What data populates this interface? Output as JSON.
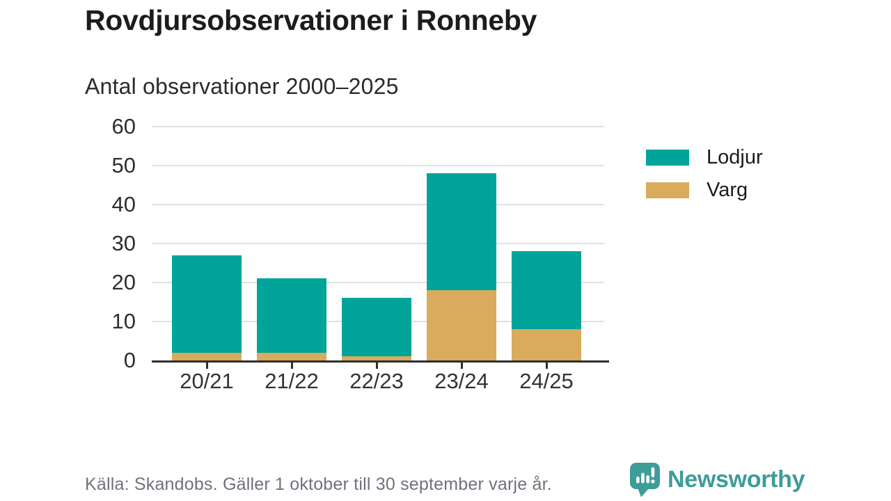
{
  "header": {
    "title": "Rovdjursobservationer i Ronneby",
    "subtitle": "Antal observationer 2000–2025"
  },
  "chart_data": {
    "type": "bar",
    "stacked": true,
    "title": "Rovdjursobservationer i Ronneby",
    "subtitle": "Antal observationer 2000–2025",
    "categories": [
      "20/21",
      "21/22",
      "22/23",
      "23/24",
      "24/25"
    ],
    "series": [
      {
        "name": "Varg",
        "color": "#D9AB5C",
        "values": [
          2,
          2,
          1,
          18,
          8
        ]
      },
      {
        "name": "Lodjur",
        "color": "#00A499",
        "values": [
          25,
          19,
          15,
          30,
          20
        ]
      }
    ],
    "stack_totals": [
      27,
      21,
      16,
      48,
      28
    ],
    "stack_order_bottom_to_top": [
      "Varg",
      "Lodjur"
    ],
    "ylim": [
      0,
      60
    ],
    "yticks": [
      0,
      10,
      20,
      30,
      40,
      50,
      60
    ],
    "xlabel": "",
    "ylabel": "",
    "grid": true,
    "legend_position": "right-top"
  },
  "legend": {
    "items": [
      {
        "label": "Lodjur",
        "color": "#00A499"
      },
      {
        "label": "Varg",
        "color": "#D9AB5C"
      }
    ]
  },
  "footer": {
    "source": "Källa: Skandobs. Gäller 1 oktober till 30 september varje år.",
    "brand": "Newsworthy"
  },
  "colors": {
    "lodjur": "#00A499",
    "varg": "#D9AB5C",
    "brand": "#3E9C99",
    "axis": "#2E2E2E",
    "grid": "#E1E1E1",
    "text_dark": "#1C1C1C",
    "text_muted": "#6E727C"
  }
}
